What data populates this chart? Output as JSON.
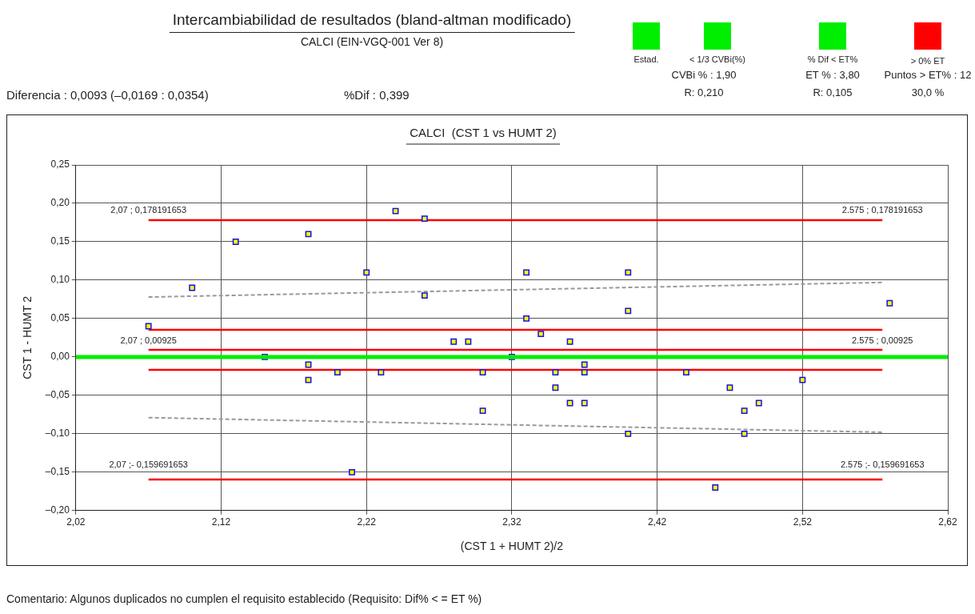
{
  "chart_data": {
    "type": "scatter",
    "title": "Intercambiabilidad de resultados (bland-altman modificado)",
    "subtitle": "CALCI (EIN-VGQ-001 Ver 8)",
    "xlabel": "(CST 1 + HUMT 2)/2",
    "ylabel": "CST 1 - HUMT 2",
    "xlim": [
      2.02,
      2.62
    ],
    "ylim": [
      -0.2,
      0.25
    ],
    "xticks": [
      {
        "value": 2.02,
        "label": "2,02"
      },
      {
        "value": 2.12,
        "label": "2,12"
      },
      {
        "value": 2.22,
        "label": "2,22"
      },
      {
        "value": 2.32,
        "label": "2,32"
      },
      {
        "value": 2.42,
        "label": "2,42"
      },
      {
        "value": 2.52,
        "label": "2,52"
      },
      {
        "value": 2.62,
        "label": "2,62"
      }
    ],
    "yticks": [
      {
        "value": -0.2,
        "label": "–0,20"
      },
      {
        "value": -0.15,
        "label": "–0,15"
      },
      {
        "value": -0.1,
        "label": "–0,10"
      },
      {
        "value": -0.05,
        "label": "–0,05"
      },
      {
        "value": 0,
        "label": "0,00"
      },
      {
        "value": 0.05,
        "label": "0,05"
      },
      {
        "value": 0.1,
        "label": "0,10"
      },
      {
        "value": 0.15,
        "label": "0,15"
      },
      {
        "value": 0.2,
        "label": "0,20"
      },
      {
        "value": 0.25,
        "label": "0,25"
      }
    ],
    "grid": true,
    "ref_lines": [
      {
        "axis": "y",
        "value": 0,
        "color": "#00ee00"
      }
    ],
    "series": [
      {
        "type": "line",
        "color": "#ff0000",
        "line_style": "solid",
        "marker": "none",
        "x": [
          2.07,
          2.575
        ],
        "values": [
          0.178191653,
          0.178191653
        ]
      },
      {
        "type": "line",
        "color": "#ff0000",
        "line_style": "solid",
        "marker": "none",
        "x": [
          2.07,
          2.575
        ],
        "values": [
          0.00925,
          0.00925
        ]
      },
      {
        "type": "line",
        "color": "#ff0000",
        "line_style": "solid",
        "marker": "none",
        "x": [
          2.07,
          2.575
        ],
        "values": [
          -0.159691653,
          -0.159691653
        ]
      },
      {
        "type": "line",
        "color": "#ff0000",
        "line_style": "solid",
        "marker": "none",
        "x": [
          2.07,
          2.575
        ],
        "values": [
          0.0354,
          0.0354
        ]
      },
      {
        "type": "line",
        "color": "#ff0000",
        "line_style": "solid",
        "marker": "none",
        "x": [
          2.07,
          2.575
        ],
        "values": [
          -0.0169,
          -0.0169
        ]
      },
      {
        "type": "line",
        "color": "#999999",
        "line_style": "dashed",
        "marker": "none",
        "x": [
          2.07,
          2.575
        ],
        "values": [
          0.078,
          0.097
        ]
      },
      {
        "type": "line",
        "color": "#999999",
        "line_style": "dashed",
        "marker": "none",
        "x": [
          2.07,
          2.575
        ],
        "values": [
          -0.079,
          -0.098
        ]
      },
      {
        "type": "scatter",
        "color": "#ffff00",
        "marker": "square",
        "x": [
          2.07,
          2.1,
          2.13,
          2.18,
          2.22,
          2.15,
          2.18,
          2.18,
          2.2,
          2.21,
          2.24,
          2.26,
          2.26,
          2.23,
          2.28,
          2.29,
          2.3,
          2.3,
          2.32,
          2.33,
          2.33,
          2.34,
          2.36,
          2.35,
          2.35,
          2.36,
          2.37,
          2.37,
          2.37,
          2.4,
          2.4,
          2.4,
          2.44,
          2.47,
          2.48,
          2.48,
          2.49,
          2.52,
          2.46,
          2.58
        ],
        "values": [
          0.04,
          0.09,
          0.15,
          0.16,
          0.11,
          0.0,
          -0.01,
          -0.03,
          -0.02,
          -0.15,
          0.19,
          0.18,
          0.08,
          -0.02,
          0.02,
          0.02,
          -0.02,
          -0.07,
          0.0,
          0.11,
          0.05,
          0.03,
          0.02,
          -0.02,
          -0.04,
          -0.06,
          -0.01,
          -0.02,
          -0.06,
          0.11,
          0.06,
          -0.1,
          -0.02,
          -0.04,
          -0.07,
          -0.1,
          -0.06,
          -0.03,
          -0.17,
          0.07
        ]
      }
    ],
    "annotations": [
      "CALCI  (CST 1 vs HUMT 2)",
      "Diferencia : 0,0093 (–0,0169 : 0,0354)",
      "%Dif : 0,399",
      "Estad.",
      "< 1/3 CVBi(%)",
      "% Dif < ET%",
      "> 0% ET",
      "CVBi % : 1,90",
      "ET % : 3,80",
      "Puntos > ET% : 12",
      "R: 0,210",
      "R: 0,105",
      "30,0 %",
      "Comentario: Algunos duplicados no cumplen el requisito establecido (Requisito: Dif% < = ET %)",
      "2,07 ; 0,178191653",
      "2.575 ; 0,178191653",
      "2,07 ; 0,00925",
      "2.575 ; 0,00925",
      "2,07 ;- 0,159691653",
      "2.575 ;- 0,159691653"
    ]
  }
}
